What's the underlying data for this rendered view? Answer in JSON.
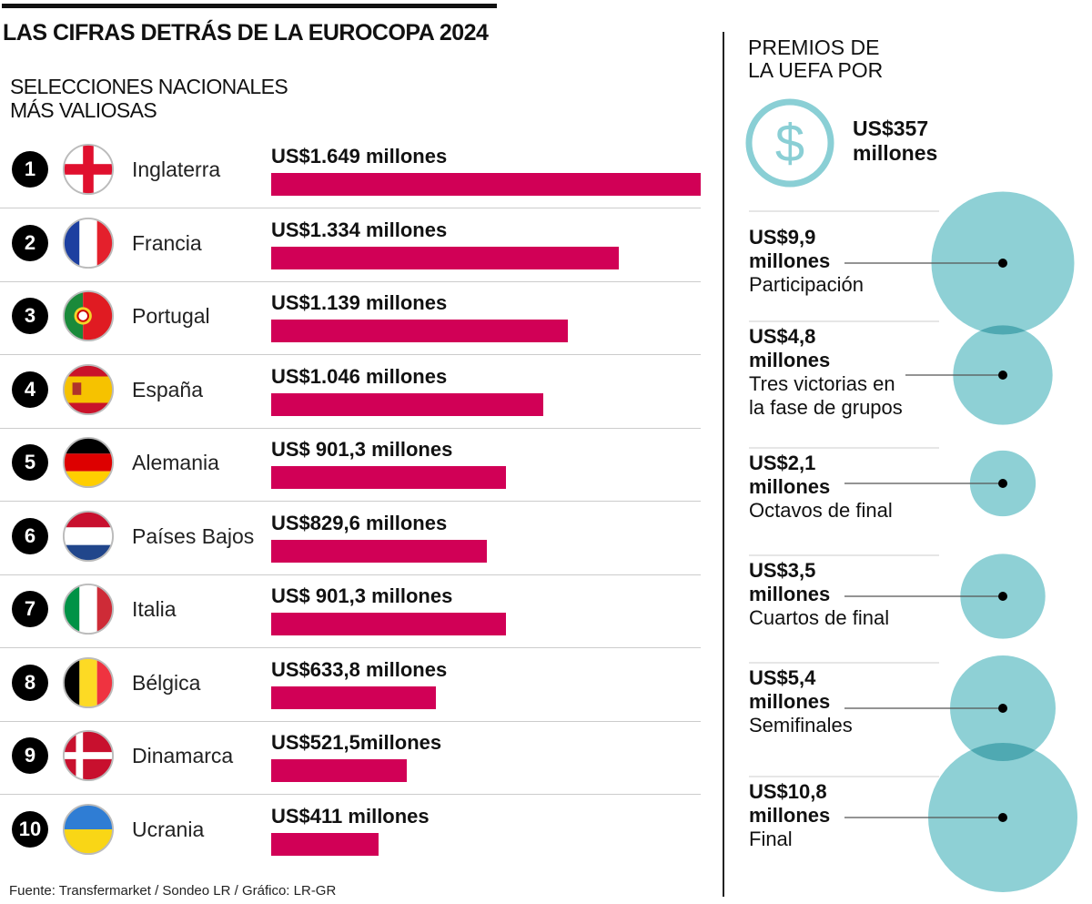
{
  "title": "LAS CIFRAS DETRÁS DE LA EUROCOPA 2024",
  "left_subtitle": [
    "SELECCIONES NACIONALES",
    "MÁS VALIOSAS"
  ],
  "source": "Fuente: Transfermarket / Sondeo LR / Gráfico: LR-GR",
  "right_title": [
    "PREMIOS DE",
    "LA UEFA POR"
  ],
  "total_prize": [
    "US$357",
    "millones"
  ],
  "colors": {
    "bar": "#d10056",
    "bubble": "#88cdd3",
    "icon": "#8acfd5"
  },
  "chart_data": [
    {
      "type": "bar",
      "title": "SELECCIONES NACIONALES MÁS VALIOSAS",
      "unit": "US$ millones",
      "categories": [
        "Inglaterra",
        "Francia",
        "Portugal",
        "España",
        "Alemania",
        "Países Bajos",
        "Italia",
        "Bélgica",
        "Dinamarca",
        "Ucrania"
      ],
      "ranks": [
        "1",
        "2",
        "3",
        "4",
        "5",
        "6",
        "7",
        "8",
        "9",
        "10"
      ],
      "flags": [
        "england",
        "france",
        "portugal",
        "spain",
        "germany",
        "netherlands",
        "italy",
        "belgium",
        "denmark",
        "ukraine"
      ],
      "values": [
        1649,
        1334,
        1139,
        1046,
        901.3,
        829.6,
        901.3,
        633.8,
        521.5,
        411
      ],
      "labels": [
        "US$1.649 millones",
        "US$1.334 millones",
        "US$1.139 millones",
        "US$1.046 millones",
        "US$ 901,3 millones",
        "US$829,6 millones",
        "US$ 901,3 millones",
        "US$633,8 millones",
        "US$521,5millones",
        "US$411 millones"
      ]
    },
    {
      "type": "bubble",
      "title": "PREMIOS DE LA UEFA POR",
      "unit": "US$ millones",
      "categories": [
        "Participación",
        "Tres victorias en la fase de grupos",
        "Octavos de final",
        "Cuartos de final",
        "Semifinales",
        "Final"
      ],
      "values": [
        9.9,
        4.8,
        2.1,
        3.5,
        5.4,
        10.8
      ],
      "amounts": [
        "US$9,9",
        "US$4,8",
        "US$2,1",
        "US$3,5",
        "US$5,4",
        "US$10,8"
      ],
      "unit_label": "millones",
      "desc_lines": [
        [
          "Participación"
        ],
        [
          "Tres victorias en",
          "la fase de grupos"
        ],
        [
          "Octavos de final"
        ],
        [
          "Cuartos de final"
        ],
        [
          "Semifinales"
        ],
        [
          "Final"
        ]
      ]
    }
  ]
}
